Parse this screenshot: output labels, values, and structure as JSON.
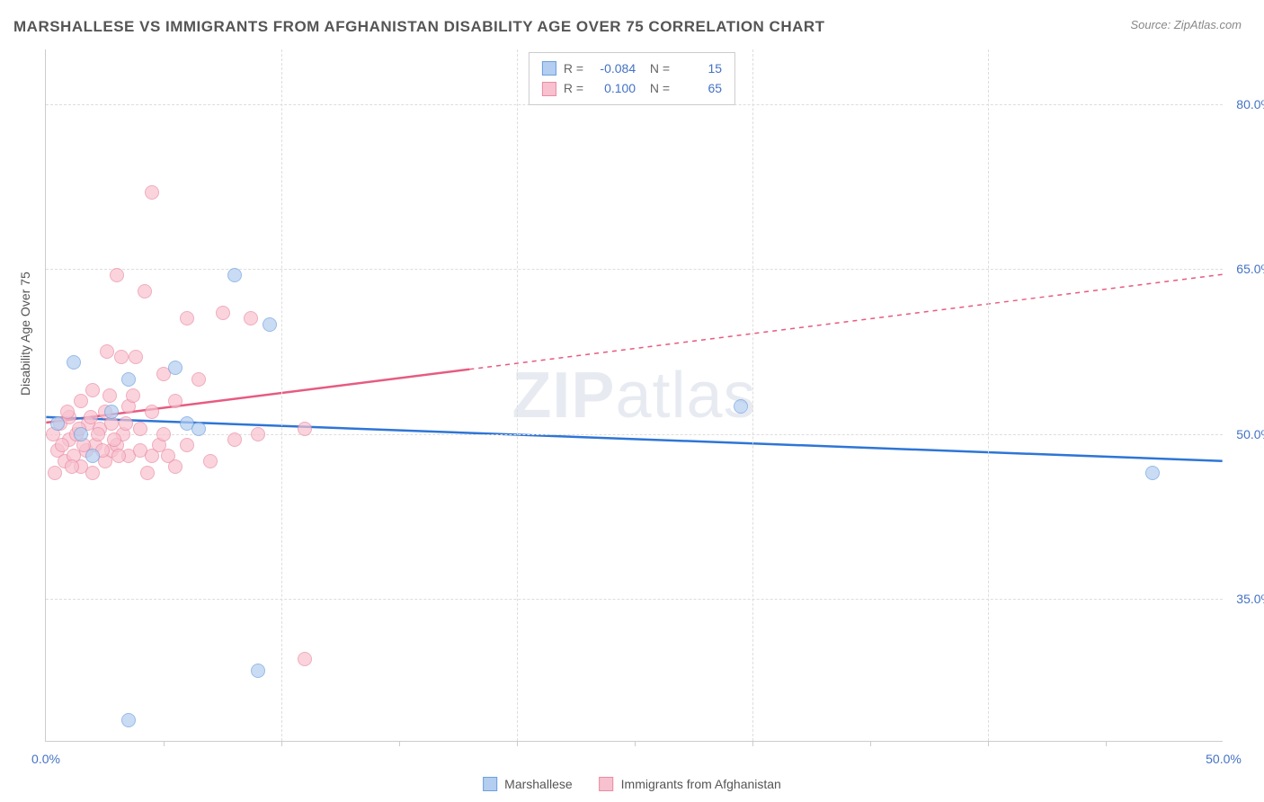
{
  "title": "MARSHALLESE VS IMMIGRANTS FROM AFGHANISTAN DISABILITY AGE OVER 75 CORRELATION CHART",
  "source": "Source: ZipAtlas.com",
  "watermark": "ZIPatlas",
  "axis": {
    "y_title": "Disability Age Over 75",
    "x_min": 0,
    "x_max": 50,
    "y_min": 22,
    "y_max": 85,
    "x_ticks": [
      0,
      50
    ],
    "y_ticks": [
      35,
      50,
      65,
      80
    ],
    "x_tick_labels": [
      "0.0%",
      "50.0%"
    ],
    "y_tick_labels": [
      "35.0%",
      "50.0%",
      "65.0%",
      "80.0%"
    ],
    "x_gridlines": [
      5,
      10,
      15,
      20,
      25,
      30,
      35,
      40,
      45
    ],
    "tick_marks_x": [
      5,
      10,
      15,
      20,
      25,
      30,
      35,
      40,
      45
    ]
  },
  "colors": {
    "blue_fill": "#b3cef0",
    "blue_stroke": "#6d9fde",
    "blue_line": "#2e75d6",
    "pink_fill": "#f8c1cf",
    "pink_stroke": "#ea8ba3",
    "pink_line": "#e75b80",
    "grid": "#dddddd",
    "axis_color": "#cccccc",
    "label_color": "#4472c4",
    "title_color": "#555555",
    "bg": "#ffffff"
  },
  "series": {
    "blue": {
      "name": "Marshallese",
      "R": "-0.084",
      "N": "15",
      "trend": {
        "x1": 0,
        "y1": 51.5,
        "x2": 50,
        "y2": 47.5
      },
      "solid_until_x": 50,
      "points": [
        [
          0.5,
          51
        ],
        [
          1.2,
          56.5
        ],
        [
          2.0,
          48
        ],
        [
          3.5,
          55
        ],
        [
          5.5,
          56
        ],
        [
          6.0,
          51
        ],
        [
          6.5,
          50.5
        ],
        [
          8.0,
          64.5
        ],
        [
          9.5,
          60
        ],
        [
          9.0,
          28.5
        ],
        [
          3.5,
          24
        ],
        [
          29.5,
          52.5
        ],
        [
          47.0,
          46.5
        ],
        [
          1.5,
          50
        ],
        [
          2.8,
          52
        ]
      ]
    },
    "pink": {
      "name": "Immigrants from Afghanistan",
      "R": "0.100",
      "N": "65",
      "trend": {
        "x1": 0,
        "y1": 51.0,
        "x2": 50,
        "y2": 64.5
      },
      "solid_until_x": 18,
      "points": [
        [
          0.3,
          50
        ],
        [
          0.5,
          48.5
        ],
        [
          0.6,
          51
        ],
        [
          0.8,
          47.5
        ],
        [
          1.0,
          49.5
        ],
        [
          1.0,
          51.5
        ],
        [
          1.2,
          48
        ],
        [
          1.3,
          50
        ],
        [
          1.5,
          47
        ],
        [
          1.5,
          53
        ],
        [
          1.7,
          48.5
        ],
        [
          1.8,
          51
        ],
        [
          2.0,
          46.5
        ],
        [
          2.0,
          54
        ],
        [
          2.1,
          49
        ],
        [
          2.3,
          50.5
        ],
        [
          2.5,
          47.5
        ],
        [
          2.5,
          52
        ],
        [
          2.6,
          57.5
        ],
        [
          2.8,
          48.5
        ],
        [
          2.8,
          51
        ],
        [
          3.0,
          64.5
        ],
        [
          3.0,
          49
        ],
        [
          3.2,
          57
        ],
        [
          3.3,
          50
        ],
        [
          3.5,
          52.5
        ],
        [
          3.5,
          48
        ],
        [
          3.7,
          53.5
        ],
        [
          3.8,
          57
        ],
        [
          4.0,
          48.5
        ],
        [
          4.0,
          50.5
        ],
        [
          4.2,
          63
        ],
        [
          4.3,
          46.5
        ],
        [
          4.5,
          72
        ],
        [
          4.5,
          52
        ],
        [
          4.5,
          48
        ],
        [
          4.8,
          49
        ],
        [
          5.0,
          55.5
        ],
        [
          5.0,
          50
        ],
        [
          5.2,
          48
        ],
        [
          5.5,
          47
        ],
        [
          5.5,
          53
        ],
        [
          6.0,
          60.5
        ],
        [
          6.0,
          49
        ],
        [
          6.5,
          55
        ],
        [
          7.0,
          47.5
        ],
        [
          7.5,
          61
        ],
        [
          8.0,
          49.5
        ],
        [
          8.7,
          60.5
        ],
        [
          9.0,
          50
        ],
        [
          11.0,
          29.5
        ],
        [
          11.0,
          50.5
        ],
        [
          0.4,
          46.5
        ],
        [
          0.7,
          49
        ],
        [
          0.9,
          52
        ],
        [
          1.1,
          47
        ],
        [
          1.4,
          50.5
        ],
        [
          1.6,
          49
        ],
        [
          1.9,
          51.5
        ],
        [
          2.2,
          50
        ],
        [
          2.4,
          48.5
        ],
        [
          2.7,
          53.5
        ],
        [
          2.9,
          49.5
        ],
        [
          3.1,
          48
        ],
        [
          3.4,
          51
        ]
      ]
    }
  },
  "marker_radius": 8,
  "line_width": 2.5
}
